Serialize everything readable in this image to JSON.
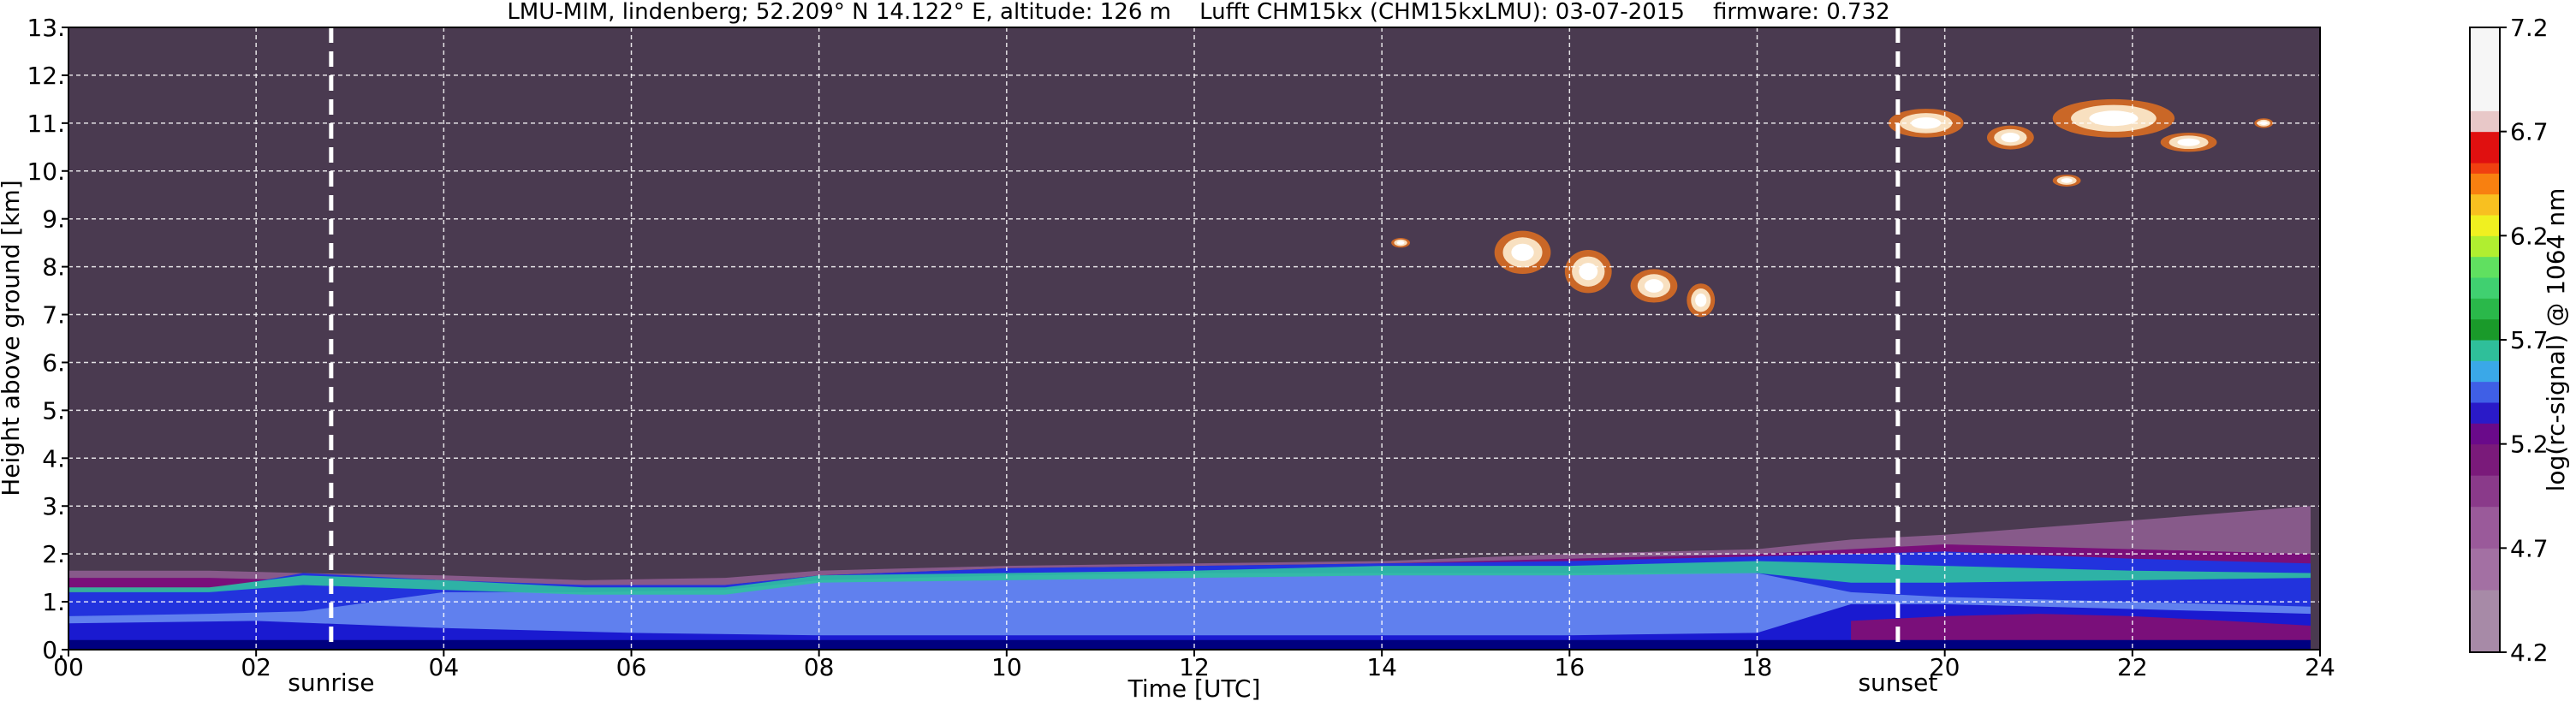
{
  "chart_data": {
    "type": "heatmap",
    "title": "LMU-MIM, lindenberg; 52.209° N 14.122° E, altitude: 126 m    Lufft CHM15kx (CHM15kxLMU): 03-07-2015    firmware: 0.732",
    "xlabel": "Time [UTC]",
    "ylabel": "Height above ground [km]",
    "xlim": [
      0,
      24
    ],
    "ylim": [
      0,
      13
    ],
    "x_ticks": [
      {
        "value": 0,
        "label": "00"
      },
      {
        "value": 2,
        "label": "02"
      },
      {
        "value": 4,
        "label": "04"
      },
      {
        "value": 6,
        "label": "06"
      },
      {
        "value": 8,
        "label": "08"
      },
      {
        "value": 10,
        "label": "10"
      },
      {
        "value": 12,
        "label": "12"
      },
      {
        "value": 14,
        "label": "14"
      },
      {
        "value": 16,
        "label": "16"
      },
      {
        "value": 18,
        "label": "18"
      },
      {
        "value": 20,
        "label": "20"
      },
      {
        "value": 22,
        "label": "22"
      },
      {
        "value": 24,
        "label": "24"
      }
    ],
    "y_ticks": [
      {
        "value": 0,
        "label": "0."
      },
      {
        "value": 1,
        "label": "1."
      },
      {
        "value": 2,
        "label": "2."
      },
      {
        "value": 3,
        "label": "3."
      },
      {
        "value": 4,
        "label": "4."
      },
      {
        "value": 5,
        "label": "5."
      },
      {
        "value": 6,
        "label": "6."
      },
      {
        "value": 7,
        "label": "7."
      },
      {
        "value": 8,
        "label": "8."
      },
      {
        "value": 9,
        "label": "9."
      },
      {
        "value": 10,
        "label": "10."
      },
      {
        "value": 11,
        "label": "11."
      },
      {
        "value": 12,
        "label": "12."
      },
      {
        "value": 13,
        "label": "13."
      }
    ],
    "grid": true,
    "background_color": "#4a3a50",
    "reference_lines": [
      {
        "x": 2.8,
        "label": "sunrise"
      },
      {
        "x": 19.5,
        "label": "sunset"
      }
    ],
    "layers": [
      {
        "x": [
          0,
          1.5,
          2.5,
          4,
          5.5,
          7,
          8,
          10,
          12,
          14,
          16,
          18,
          19,
          20,
          22,
          23.9
        ],
        "bottom": [
          0,
          0,
          0,
          0,
          0,
          0,
          0,
          0,
          0,
          0,
          0,
          0,
          0,
          0,
          0,
          0
        ],
        "top": [
          1.65,
          1.65,
          1.6,
          1.55,
          1.45,
          1.5,
          1.65,
          1.75,
          1.8,
          1.85,
          2.0,
          2.1,
          2.3,
          2.4,
          2.7,
          3.0
        ],
        "color": "#b070b0",
        "opacity": 0.6
      },
      {
        "x": [
          0,
          1.5,
          2.5,
          4,
          5.5,
          7,
          8,
          10,
          12,
          14,
          16,
          18,
          19,
          20,
          22,
          23.9
        ],
        "bottom": [
          0,
          0,
          0,
          0,
          0,
          0,
          0,
          0,
          0,
          0,
          0,
          0,
          0,
          0,
          0,
          0
        ],
        "top": [
          1.5,
          1.5,
          1.45,
          1.4,
          1.3,
          1.35,
          1.55,
          1.7,
          1.75,
          1.8,
          1.9,
          2.0,
          2.1,
          2.2,
          2.1,
          2.0
        ],
        "color": "#7a0f7a",
        "opacity": 1
      },
      {
        "x": [
          0,
          1.5,
          2.5,
          4,
          5.5,
          7,
          8,
          10,
          12,
          14,
          16,
          18,
          19,
          20,
          22,
          23.9
        ],
        "bottom": [
          0,
          0,
          0,
          0,
          0,
          0,
          0,
          0,
          0,
          0,
          0,
          0,
          0,
          0,
          0,
          0
        ],
        "top": [
          1.2,
          1.25,
          1.6,
          1.45,
          1.35,
          1.35,
          1.55,
          1.7,
          1.75,
          1.8,
          1.85,
          1.95,
          2.0,
          2.05,
          1.9,
          1.8
        ],
        "color": "#2233dd",
        "opacity": 1
      },
      {
        "x": [
          0,
          1.5,
          2.5,
          4,
          5.5,
          7,
          8,
          10,
          12,
          14,
          16,
          18,
          19,
          20,
          22,
          23.9
        ],
        "bottom": [
          0,
          0,
          0,
          0,
          0,
          0,
          0,
          0,
          0,
          0,
          0,
          0,
          0,
          0,
          0,
          0
        ],
        "top": [
          0.7,
          0.75,
          0.8,
          1.2,
          1.2,
          1.25,
          1.45,
          1.55,
          1.6,
          1.6,
          1.6,
          1.6,
          1.2,
          1.1,
          1.0,
          0.9
        ],
        "color": "#6080ee",
        "opacity": 1
      },
      {
        "x": [
          0,
          1.5,
          2.5,
          4,
          5.5,
          7,
          8,
          10,
          12,
          14,
          16,
          18,
          19,
          20,
          22,
          23.9
        ],
        "bottom": [
          1.2,
          1.2,
          1.35,
          1.25,
          1.15,
          1.15,
          1.4,
          1.45,
          1.5,
          1.55,
          1.55,
          1.6,
          1.4,
          1.4,
          1.45,
          1.5
        ],
        "top": [
          1.3,
          1.3,
          1.55,
          1.45,
          1.3,
          1.3,
          1.55,
          1.6,
          1.65,
          1.75,
          1.75,
          1.85,
          1.8,
          1.75,
          1.65,
          1.6
        ],
        "color": "#30c0a0",
        "opacity": 0.9
      },
      {
        "x": [
          0,
          2,
          4,
          6,
          8,
          10,
          12,
          14,
          16,
          18,
          19,
          20,
          22,
          23.9
        ],
        "bottom": [
          0,
          0,
          0,
          0,
          0,
          0,
          0,
          0,
          0,
          0,
          0,
          0,
          0,
          0
        ],
        "top": [
          0.55,
          0.6,
          0.45,
          0.35,
          0.3,
          0.3,
          0.3,
          0.3,
          0.3,
          0.35,
          0.95,
          0.95,
          0.85,
          0.75
        ],
        "color": "#1a1ad0",
        "opacity": 1
      },
      {
        "x": [
          19,
          20,
          21,
          22,
          23,
          23.9
        ],
        "bottom": [
          0.1,
          0.1,
          0.1,
          0.1,
          0.1,
          0.1
        ],
        "top": [
          0.6,
          0.7,
          0.75,
          0.7,
          0.6,
          0.5
        ],
        "color": "#7a0f7a",
        "opacity": 1
      },
      {
        "x": [
          0,
          6,
          12,
          18,
          23.9
        ],
        "bottom": [
          0,
          0,
          0,
          0,
          0
        ],
        "top": [
          0.2,
          0.2,
          0.2,
          0.2,
          0.2
        ],
        "color": "#000080",
        "opacity": 1
      }
    ],
    "clouds": [
      {
        "x": 15.5,
        "y": 8.3,
        "w": 0.6,
        "h": 0.9
      },
      {
        "x": 16.2,
        "y": 7.9,
        "w": 0.5,
        "h": 0.9
      },
      {
        "x": 16.9,
        "y": 7.6,
        "w": 0.5,
        "h": 0.7
      },
      {
        "x": 17.4,
        "y": 7.3,
        "w": 0.3,
        "h": 0.7
      },
      {
        "x": 14.2,
        "y": 8.5,
        "w": 0.2,
        "h": 0.2
      },
      {
        "x": 19.8,
        "y": 11.0,
        "w": 0.8,
        "h": 0.6
      },
      {
        "x": 20.7,
        "y": 10.7,
        "w": 0.5,
        "h": 0.5
      },
      {
        "x": 21.8,
        "y": 11.1,
        "w": 1.3,
        "h": 0.8
      },
      {
        "x": 22.6,
        "y": 10.6,
        "w": 0.6,
        "h": 0.4
      },
      {
        "x": 21.3,
        "y": 9.8,
        "w": 0.3,
        "h": 0.25
      },
      {
        "x": 23.4,
        "y": 11.0,
        "w": 0.2,
        "h": 0.2
      }
    ],
    "colorbar": {
      "label": "log(rc-signal) @ 1064 nm",
      "range": [
        4.2,
        7.2
      ],
      "ticks": [
        {
          "value": 4.2,
          "label": "4.2"
        },
        {
          "value": 4.7,
          "label": "4.7"
        },
        {
          "value": 5.2,
          "label": "5.2"
        },
        {
          "value": 5.7,
          "label": "5.7"
        },
        {
          "value": 6.2,
          "label": "6.2"
        },
        {
          "value": 6.7,
          "label": "6.7"
        },
        {
          "value": 7.2,
          "label": "7.2"
        }
      ],
      "bins": [
        {
          "from": 4.2,
          "to": 4.5,
          "color": "#a78aa7"
        },
        {
          "from": 4.5,
          "to": 4.7,
          "color": "#a370a3"
        },
        {
          "from": 4.7,
          "to": 4.9,
          "color": "#9a5a9a"
        },
        {
          "from": 4.9,
          "to": 5.05,
          "color": "#8a3a8a"
        },
        {
          "from": 5.05,
          "to": 5.2,
          "color": "#7a1a7a"
        },
        {
          "from": 5.2,
          "to": 5.3,
          "color": "#6a0a8a"
        },
        {
          "from": 5.3,
          "to": 5.4,
          "color": "#2a1ac8"
        },
        {
          "from": 5.4,
          "to": 5.5,
          "color": "#3f5fe6"
        },
        {
          "from": 5.5,
          "to": 5.6,
          "color": "#3aa8e8"
        },
        {
          "from": 5.6,
          "to": 5.7,
          "color": "#2fbf9a"
        },
        {
          "from": 5.7,
          "to": 5.8,
          "color": "#1a9a2a"
        },
        {
          "from": 5.8,
          "to": 5.9,
          "color": "#2ab84a"
        },
        {
          "from": 5.9,
          "to": 6.0,
          "color": "#40d070"
        },
        {
          "from": 6.0,
          "to": 6.1,
          "color": "#60e060"
        },
        {
          "from": 6.1,
          "to": 6.2,
          "color": "#b0ee30"
        },
        {
          "from": 6.2,
          "to": 6.3,
          "color": "#f0f020"
        },
        {
          "from": 6.3,
          "to": 6.4,
          "color": "#f8c020"
        },
        {
          "from": 6.4,
          "to": 6.5,
          "color": "#f88010"
        },
        {
          "from": 6.5,
          "to": 6.55,
          "color": "#f04010"
        },
        {
          "from": 6.55,
          "to": 6.7,
          "color": "#e01010"
        },
        {
          "from": 6.7,
          "to": 6.8,
          "color": "#e8c8c8"
        },
        {
          "from": 6.8,
          "to": 7.2,
          "color": "#f6f6f6"
        }
      ]
    }
  }
}
